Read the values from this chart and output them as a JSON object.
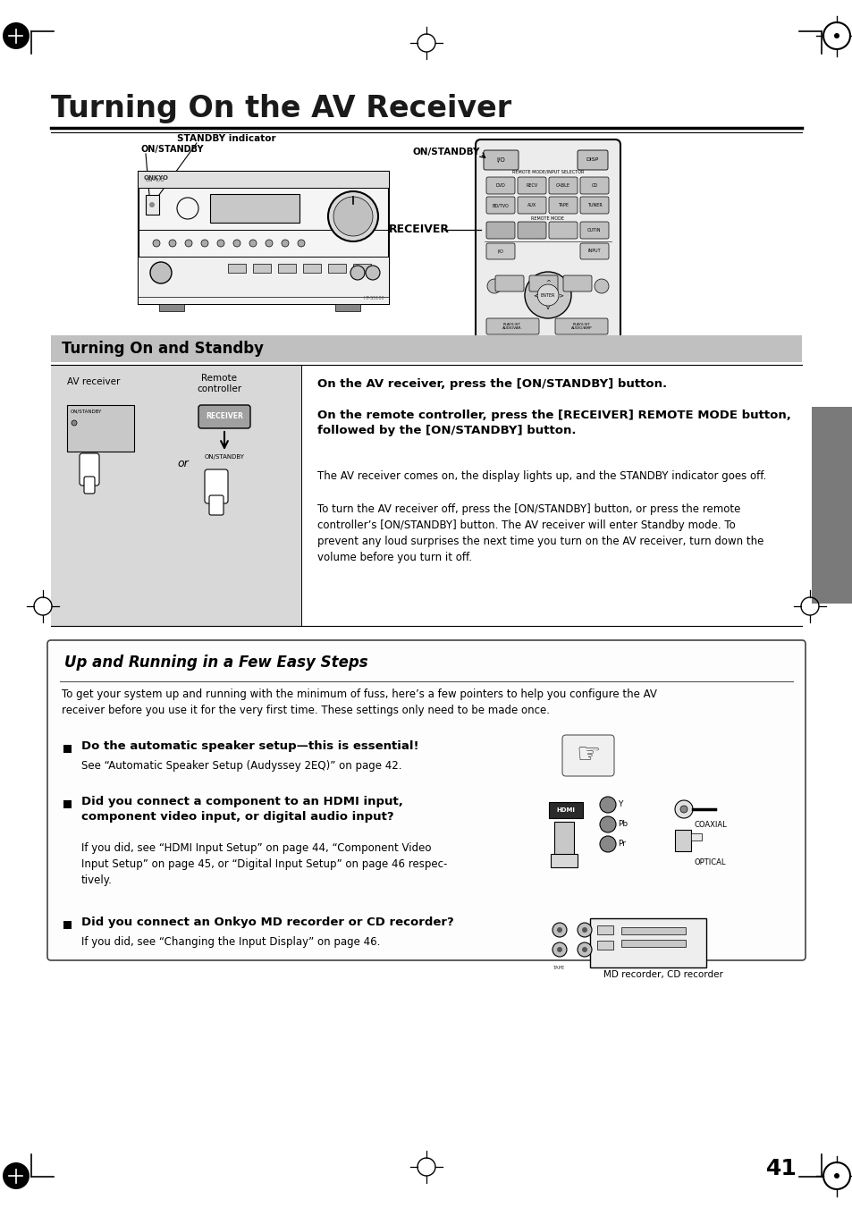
{
  "title_text": "Turning On the AV Receiver",
  "page_number": "41",
  "background_color": "#ffffff",
  "section1_header": "Turning On and Standby",
  "section2_header": "Up and Running in a Few Easy Steps",
  "on_standby_label1": "ON/STANDBY",
  "standby_indicator_label": "STANDBY indicator",
  "on_standby_label_remote": "ON/STANDBY",
  "receiver_label": "RECEIVER",
  "av_receiver_label": "AV receiver",
  "remote_controller_label": "Remote\ncontroller",
  "or_label": "or",
  "on_standby_label4": "ON/STANDBY",
  "instruction1_bold": "On the AV receiver, press the [ON/STANDBY] button.",
  "instruction2_bold": "On the remote controller, press the [RECEIVER] REMOTE MODE button,\nfollowed by the [ON/STANDBY] button.",
  "instruction2_normal": "The AV receiver comes on, the display lights up, and the STANDBY indicator goes off.",
  "instruction3": "To turn the AV receiver off, press the [ON/STANDBY] button, or press the remote\ncontroller’s [ON/STANDBY] button. The AV receiver will enter Standby mode. To\nprevent any loud surprises the next time you turn on the AV receiver, turn down the\nvolume before you turn it off.",
  "uprunning_intro": "To get your system up and running with the minimum of fuss, here’s a few pointers to help you configure the AV\nreceiver before you use it for the very first time. These settings only need to be made once.",
  "bullet1_bold": "Do the automatic speaker setup—this is essential!",
  "bullet1_normal": "See “Automatic Speaker Setup (Audyssey 2EQ)” on page 42.",
  "bullet2_bold": "Did you connect a component to an HDMI input,\ncomponent video input, or digital audio input?",
  "bullet2_normal": "If you did, see “HDMI Input Setup” on page 44, “Component Video\nInput Setup” on page 45, or “Digital Input Setup” on page 46 respec-\ntively.",
  "bullet3_bold": "Did you connect an Onkyo MD recorder or CD recorder?",
  "bullet3_normal": "If you did, see “Changing the Input Display” on page 46.",
  "hdmi_label": "HDMI",
  "coaxial_label": "COAXIAL",
  "optical_label": "OPTICAL",
  "md_recorder_label": "MD recorder, CD recorder",
  "tab_color": "#7a7a7a",
  "section1_bg": "#c0c0c0",
  "body_font": "DejaVu Sans",
  "title_fontsize": 24,
  "section_fontsize": 11,
  "body_fontsize": 8.5,
  "small_fontsize": 7
}
